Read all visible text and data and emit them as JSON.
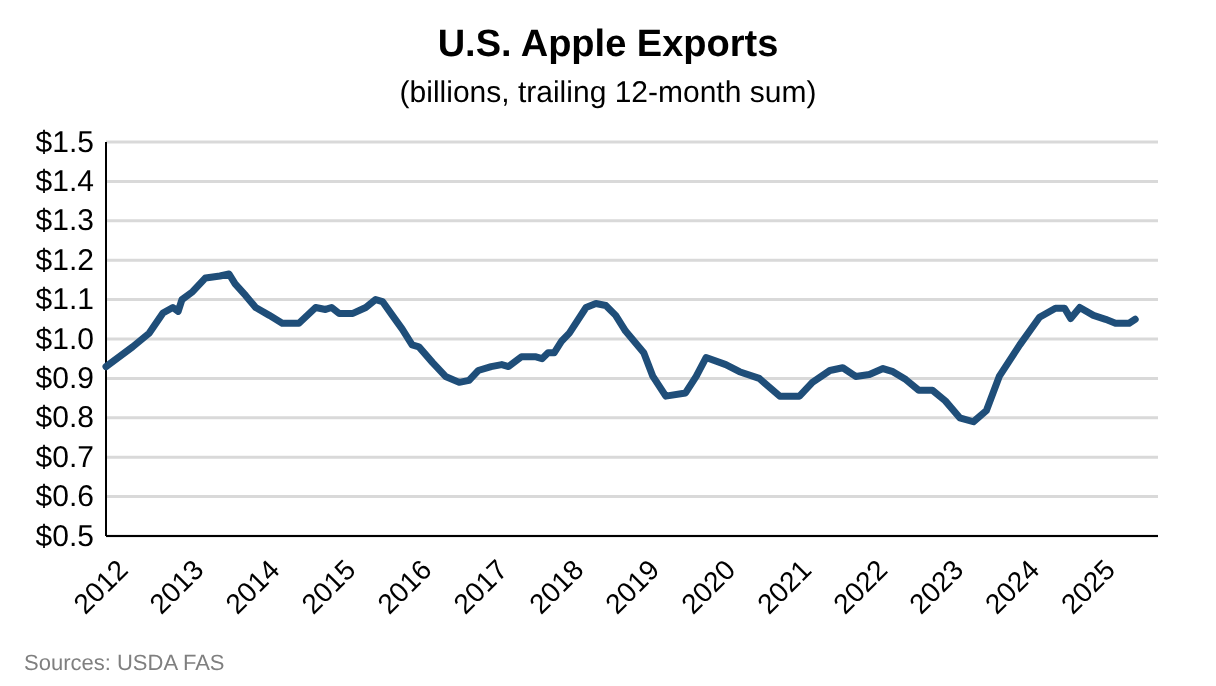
{
  "chart_data": {
    "type": "line",
    "title": "U.S. Apple Exports",
    "subtitle": "(billions, trailing 12-month sum)",
    "annotations": [
      "Sources: USDA FAS"
    ],
    "x": [
      2012.0,
      2012.35,
      2012.57,
      2012.75,
      2012.88,
      2012.95,
      2013.0,
      2013.14,
      2013.31,
      2013.5,
      2013.62,
      2013.7,
      2013.84,
      2013.97,
      2014.15,
      2014.32,
      2014.54,
      2014.76,
      2014.89,
      2014.97,
      2015.07,
      2015.25,
      2015.42,
      2015.55,
      2015.64,
      2015.77,
      2015.9,
      2016.03,
      2016.12,
      2016.3,
      2016.47,
      2016.65,
      2016.78,
      2016.9,
      2017.07,
      2017.21,
      2017.3,
      2017.47,
      2017.65,
      2017.74,
      2017.82,
      2017.9,
      2018.0,
      2018.1,
      2018.32,
      2018.45,
      2018.58,
      2018.71,
      2018.84,
      2019.08,
      2019.2,
      2019.37,
      2019.63,
      2019.77,
      2019.9,
      2020.16,
      2020.34,
      2020.6,
      2020.87,
      2021.13,
      2021.3,
      2021.53,
      2021.7,
      2021.87,
      2022.05,
      2022.23,
      2022.36,
      2022.53,
      2022.7,
      2022.88,
      2023.05,
      2023.24,
      2023.42,
      2023.59,
      2023.76,
      2024.03,
      2024.29,
      2024.5,
      2024.62,
      2024.7,
      2024.82,
      2025.0,
      2025.16,
      2025.29,
      2025.47,
      2025.55
    ],
    "series": [
      {
        "color": "#1f4e79",
        "values": [
          0.93,
          0.98,
          1.015,
          1.066,
          1.08,
          1.07,
          1.1,
          1.12,
          1.155,
          1.16,
          1.165,
          1.14,
          1.11,
          1.08,
          1.06,
          1.04,
          1.04,
          1.08,
          1.075,
          1.08,
          1.065,
          1.065,
          1.08,
          1.1,
          1.095,
          1.06,
          1.025,
          0.985,
          0.98,
          0.94,
          0.905,
          0.89,
          0.895,
          0.92,
          0.93,
          0.935,
          0.93,
          0.955,
          0.955,
          0.95,
          0.965,
          0.965,
          0.995,
          1.015,
          1.08,
          1.09,
          1.085,
          1.06,
          1.02,
          0.965,
          0.905,
          0.855,
          0.863,
          0.905,
          0.953,
          0.935,
          0.917,
          0.9,
          0.855,
          0.855,
          0.89,
          0.92,
          0.927,
          0.905,
          0.91,
          0.925,
          0.917,
          0.897,
          0.87,
          0.87,
          0.843,
          0.8,
          0.79,
          0.818,
          0.905,
          0.985,
          1.055,
          1.078,
          1.078,
          1.052,
          1.08,
          1.06,
          1.05,
          1.04,
          1.04,
          1.05
        ]
      }
    ],
    "xlim": [
      2012,
      2025.85
    ],
    "xticks": [
      2012,
      2013,
      2014,
      2015,
      2016,
      2017,
      2018,
      2019,
      2020,
      2021,
      2022,
      2023,
      2024,
      2025
    ],
    "ylim": [
      0.5,
      1.5
    ],
    "yticks": [
      {
        "value": 0.5,
        "label": "$0.5"
      },
      {
        "value": 0.6,
        "label": "$0.6"
      },
      {
        "value": 0.7,
        "label": "$0.7"
      },
      {
        "value": 0.8,
        "label": "$0.8"
      },
      {
        "value": 0.9,
        "label": "$0.9"
      },
      {
        "value": 1.0,
        "label": "$1.0"
      },
      {
        "value": 1.1,
        "label": "$1.1"
      },
      {
        "value": 1.2,
        "label": "$1.2"
      },
      {
        "value": 1.3,
        "label": "$1.3"
      },
      {
        "value": 1.4,
        "label": "$1.4"
      },
      {
        "value": 1.5,
        "label": "$1.5"
      }
    ],
    "grid": "y",
    "marker": "none",
    "line_style": "solid"
  }
}
